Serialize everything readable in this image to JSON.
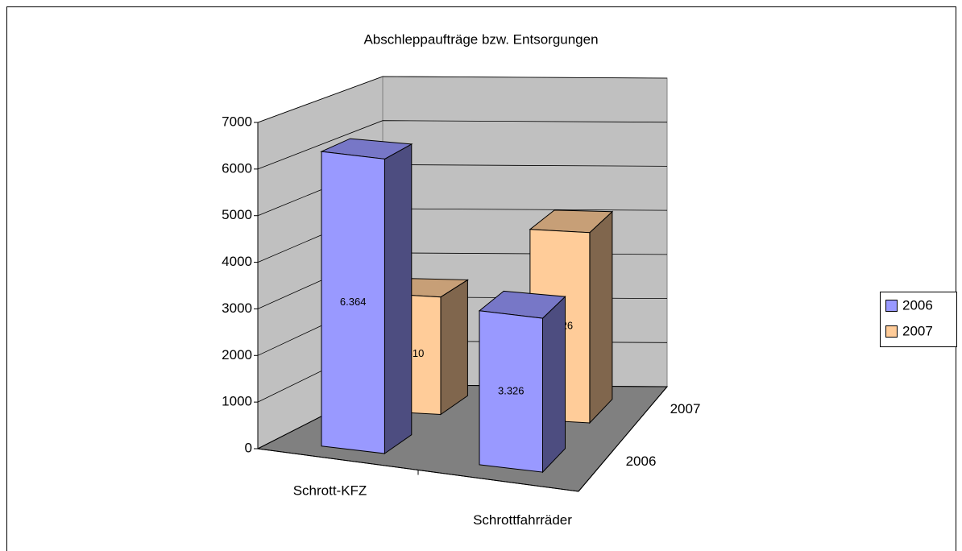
{
  "chart_data": {
    "type": "bar3d",
    "title": "Abschleppaufträge bzw. Entsorgungen",
    "categories": [
      "Schrott-KFZ",
      "Schrottfahrräder"
    ],
    "series": [
      {
        "name": "2006",
        "color": "#9999ff",
        "values": [
          6364,
          3326
        ],
        "value_labels": [
          "6.364",
          "3.326"
        ]
      },
      {
        "name": "2007",
        "color": "#ffcc99",
        "values": [
          2610,
          4226
        ],
        "value_labels": [
          "2.610",
          "4.226"
        ]
      }
    ],
    "ylim": [
      0,
      7000
    ],
    "yticks": [
      0,
      1000,
      2000,
      3000,
      4000,
      5000,
      6000,
      7000
    ],
    "grid": true,
    "legend": "right"
  }
}
